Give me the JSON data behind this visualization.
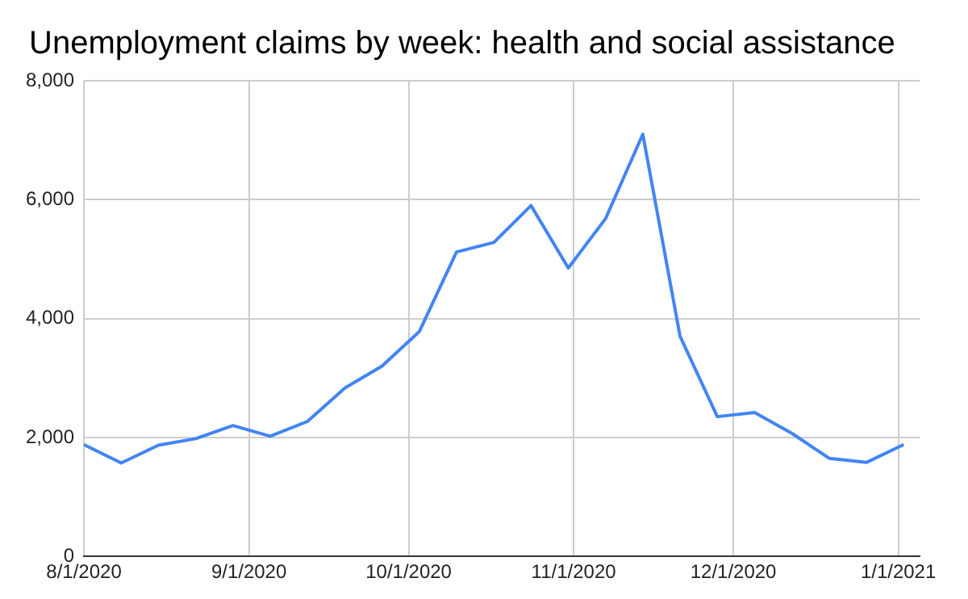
{
  "chart_data": {
    "type": "line",
    "title": "Unemployment claims by week: health and social assistance",
    "x": [
      "2020-08-01",
      "2020-08-08",
      "2020-08-15",
      "2020-08-22",
      "2020-08-29",
      "2020-09-05",
      "2020-09-12",
      "2020-09-19",
      "2020-09-26",
      "2020-10-03",
      "2020-10-10",
      "2020-10-17",
      "2020-10-24",
      "2020-10-31",
      "2020-11-07",
      "2020-11-14",
      "2020-11-21",
      "2020-11-28",
      "2020-12-05",
      "2020-12-12",
      "2020-12-19",
      "2020-12-26",
      "2021-01-02"
    ],
    "series": [
      {
        "color": "#4285f4",
        "values": [
          1880,
          1570,
          1870,
          1980,
          2200,
          2020,
          2270,
          2830,
          3200,
          3780,
          5120,
          5280,
          5900,
          4850,
          5680,
          7100,
          3700,
          2350,
          2420,
          2070,
          1650,
          1580,
          1880
        ]
      }
    ],
    "xlim": [
      "2020-08-01",
      "2021-01-05"
    ],
    "xticks": [
      {
        "value": "2020-08-01",
        "label": "8/1/2020"
      },
      {
        "value": "2020-09-01",
        "label": "9/1/2020"
      },
      {
        "value": "2020-10-01",
        "label": "10/1/2020"
      },
      {
        "value": "2020-11-01",
        "label": "11/1/2020"
      },
      {
        "value": "2020-12-01",
        "label": "12/1/2020"
      },
      {
        "value": "2021-01-01",
        "label": "1/1/2021"
      }
    ],
    "ylim": [
      0,
      8000
    ],
    "yticks": [
      {
        "value": 0,
        "label": "0"
      },
      {
        "value": 2000,
        "label": "2,000"
      },
      {
        "value": 4000,
        "label": "4,000"
      },
      {
        "value": 6000,
        "label": "6,000"
      },
      {
        "value": 8000,
        "label": "8,000"
      }
    ],
    "grid": true,
    "legend": false,
    "marker": "none",
    "line_style": "solid"
  }
}
